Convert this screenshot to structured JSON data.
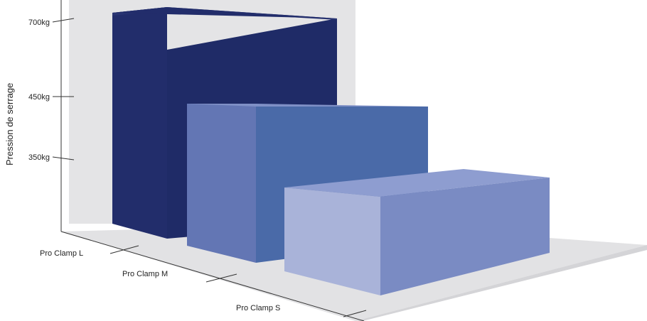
{
  "chart_data": {
    "type": "bar",
    "ylabel": "Pression de serrage",
    "xlabel": "",
    "title": "",
    "y_ticks": [
      {
        "value": 350,
        "label": "350kg"
      },
      {
        "value": 450,
        "label": "450kg"
      },
      {
        "value": 700,
        "label": "700kg"
      }
    ],
    "ylim": [
      0,
      700
    ],
    "categories": [
      "Pro Clamp L",
      "Pro Clamp M",
      "Pro Clamp S"
    ],
    "values": [
      700,
      450,
      350
    ],
    "colors": {
      "Pro Clamp L": {
        "front": "#222d6b",
        "side": "#1f2b67",
        "top": "#2a3573"
      },
      "Pro Clamp M": {
        "front": "#6376b4",
        "side": "#4a6aa8",
        "top": "#7f90c6"
      },
      "Pro Clamp S": {
        "front": "#a9b3d9",
        "side": "#7a8bc3",
        "top": "#8e9dd0"
      }
    }
  }
}
